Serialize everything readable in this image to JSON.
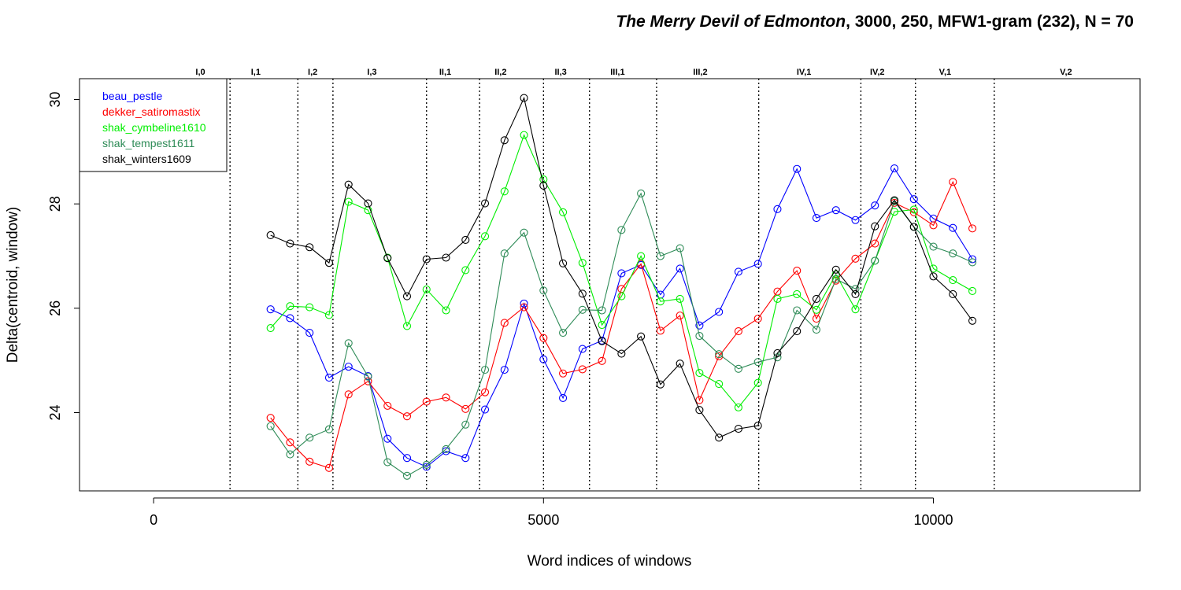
{
  "chart_data": {
    "type": "line",
    "title_italic": "The Merry Devil of Edmonton",
    "title_rest": ", 3000, 250, MFW1-gram (232), N = 70",
    "xlabel": "Word indices of windows",
    "ylabel": "Delta(centroid, window)",
    "xlim": [
      -950,
      12650
    ],
    "ylim": [
      22.5,
      30.4
    ],
    "x_ticks": [
      {
        "value": 0,
        "label": "0"
      },
      {
        "value": 5000,
        "label": "5000"
      },
      {
        "value": 10000,
        "label": "10000"
      }
    ],
    "y_ticks": [
      {
        "value": 24,
        "label": "24"
      },
      {
        "value": 26,
        "label": "26"
      },
      {
        "value": 28,
        "label": "28"
      },
      {
        "value": 30,
        "label": "30"
      }
    ],
    "act_boundaries": [
      980,
      1850,
      2300,
      3500,
      4180,
      5000,
      5590,
      6450,
      7760,
      9070,
      9770,
      10780
    ],
    "acts": [
      {
        "label": "I,0",
        "x": 600
      },
      {
        "label": "I,1",
        "x": 1310
      },
      {
        "label": "I,2",
        "x": 2040
      },
      {
        "label": "I,3",
        "x": 2800
      },
      {
        "label": "II,1",
        "x": 3740
      },
      {
        "label": "II,2",
        "x": 4450
      },
      {
        "label": "II,3",
        "x": 5220
      },
      {
        "label": "III,1",
        "x": 5950
      },
      {
        "label": "III,2",
        "x": 7010
      },
      {
        "label": "IV,1",
        "x": 8340
      },
      {
        "label": "IV,2",
        "x": 9280
      },
      {
        "label": "V,1",
        "x": 10150
      },
      {
        "label": "V,2",
        "x": 11700
      }
    ],
    "x": [
      1500,
      1750,
      2000,
      2250,
      2500,
      2750,
      3000,
      3250,
      3500,
      3750,
      4000,
      4250,
      4500,
      4750,
      5000,
      5250,
      5500,
      5750,
      6000,
      6250,
      6500,
      6750,
      7000,
      7250,
      7500,
      7750,
      8000,
      8250,
      8500,
      8750,
      9000,
      9250,
      9500,
      9750,
      10000,
      10250,
      10500
    ],
    "series": [
      {
        "name": "beau_pestle",
        "color": "#0000ff",
        "values": [
          25.98,
          25.81,
          25.53,
          24.67,
          24.88,
          24.7,
          23.5,
          23.13,
          22.96,
          23.26,
          23.13,
          24.06,
          24.82,
          26.09,
          25.02,
          24.28,
          25.22,
          25.38,
          26.67,
          26.83,
          26.26,
          26.76,
          25.67,
          25.93,
          26.7,
          26.85,
          27.9,
          28.67,
          27.73,
          27.88,
          27.69,
          27.97,
          28.68,
          28.09,
          27.72,
          27.54,
          26.94
        ]
      },
      {
        "name": "dekker_satiromastix",
        "color": "#ff0000",
        "values": [
          23.9,
          23.43,
          23.06,
          22.94,
          24.35,
          24.6,
          24.13,
          23.93,
          24.21,
          24.29,
          24.07,
          24.39,
          25.72,
          26.02,
          25.43,
          24.75,
          24.83,
          24.99,
          26.37,
          26.85,
          25.57,
          25.86,
          24.24,
          25.08,
          25.56,
          25.8,
          26.32,
          26.72,
          25.8,
          26.53,
          26.95,
          27.24,
          28.02,
          27.84,
          27.59,
          28.42,
          27.53
        ]
      },
      {
        "name": "shak_cymbeline1610",
        "color": "#00ee00",
        "values": [
          25.62,
          26.04,
          26.02,
          25.87,
          28.04,
          27.88,
          26.97,
          25.66,
          26.36,
          25.96,
          26.73,
          27.38,
          28.24,
          29.32,
          28.47,
          27.84,
          26.87,
          25.68,
          26.23,
          27.0,
          26.13,
          26.18,
          24.76,
          24.55,
          24.1,
          24.57,
          26.18,
          26.27,
          25.97,
          26.65,
          25.98,
          26.91,
          27.85,
          27.89,
          26.76,
          26.54,
          26.33
        ]
      },
      {
        "name": "shak_tempest1611",
        "color": "#2e8b57",
        "values": [
          23.74,
          23.2,
          23.52,
          23.68,
          25.33,
          24.69,
          23.05,
          22.79,
          23.0,
          23.3,
          23.77,
          24.82,
          27.05,
          27.45,
          26.34,
          25.53,
          25.97,
          25.96,
          27.5,
          28.2,
          27.0,
          27.15,
          25.47,
          25.12,
          24.84,
          24.97,
          25.06,
          25.96,
          25.59,
          26.56,
          26.37,
          26.91,
          28.05,
          27.56,
          27.18,
          27.05,
          26.88
        ]
      },
      {
        "name": "shak_winters1609",
        "color": "#000000",
        "values": [
          27.4,
          27.24,
          27.17,
          26.87,
          28.37,
          28.01,
          26.96,
          26.23,
          26.94,
          26.97,
          27.31,
          28.01,
          29.22,
          30.03,
          28.35,
          26.86,
          26.28,
          25.37,
          25.13,
          25.46,
          24.54,
          24.94,
          24.05,
          23.52,
          23.69,
          23.75,
          25.14,
          25.56,
          26.18,
          26.74,
          26.27,
          27.57,
          28.07,
          27.56,
          26.61,
          26.27,
          25.76
        ]
      }
    ]
  }
}
